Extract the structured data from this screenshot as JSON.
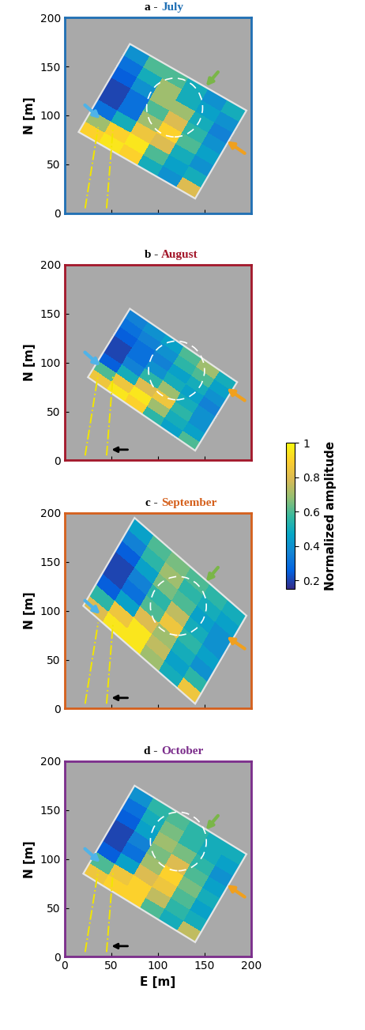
{
  "chart_data": [
    {
      "type": "heatmap",
      "title": "a - July",
      "color": "#1f6fb4",
      "xlim": [
        0,
        200
      ],
      "ylim": [
        0,
        200
      ],
      "xticks": [
        0,
        50,
        100,
        150,
        200
      ],
      "yticks": [
        0,
        50,
        100,
        150,
        200
      ],
      "y_label": "N [m]",
      "tick_labels": "y",
      "grid_corners": [
        [
          140,
          15
        ],
        [
          195,
          105
        ],
        [
          15,
          83
        ]
      ],
      "cells": [
        [
          0.8,
          0.5,
          0.4,
          0.45,
          0.4,
          0.35,
          0.4,
          0.5
        ],
        [
          0.4,
          0.45,
          0.5,
          0.6,
          0.55,
          0.5,
          0.45,
          0.4
        ],
        [
          0.5,
          0.6,
          0.8,
          0.9,
          0.8,
          0.7,
          0.5,
          0.5
        ],
        [
          0.9,
          0.95,
          0.85,
          0.7,
          0.6,
          0.7,
          0.7,
          0.6
        ],
        [
          0.95,
          0.9,
          0.5,
          0.3,
          0.3,
          0.4,
          0.5,
          0.6
        ],
        [
          0.9,
          0.7,
          0.3,
          0.2,
          0.2,
          0.25,
          0.3,
          0.4
        ]
      ]
    },
    {
      "type": "heatmap",
      "title": "b - August",
      "color": "#a3172a",
      "xlim": [
        0,
        200
      ],
      "ylim": [
        0,
        200
      ],
      "xticks": [
        0,
        50,
        100,
        150,
        200
      ],
      "yticks": [
        0,
        50,
        100,
        150,
        200
      ],
      "y_label": "N [m]",
      "tick_labels": "y",
      "grid_corners": [
        [
          140,
          10
        ],
        [
          185,
          80
        ],
        [
          25,
          85
        ]
      ],
      "cells": [
        [
          0.6,
          0.45,
          0.4,
          0.4,
          0.35,
          0.4,
          0.45,
          0.5
        ],
        [
          0.45,
          0.5,
          0.55,
          0.5,
          0.45,
          0.5,
          0.6,
          0.7
        ],
        [
          0.55,
          0.7,
          0.85,
          0.7,
          0.5,
          0.45,
          0.55,
          0.6
        ],
        [
          0.9,
          0.95,
          0.8,
          0.55,
          0.4,
          0.35,
          0.4,
          0.45
        ],
        [
          0.95,
          0.85,
          0.5,
          0.35,
          0.3,
          0.3,
          0.35,
          0.4
        ],
        [
          0.85,
          0.6,
          0.25,
          0.2,
          0.2,
          0.25,
          0.3,
          0.35
        ]
      ]
    },
    {
      "type": "heatmap",
      "title": "c - September",
      "color": "#d5601c",
      "xlim": [
        0,
        200
      ],
      "ylim": [
        0,
        200
      ],
      "xticks": [
        0,
        50,
        100,
        150,
        200
      ],
      "yticks": [
        0,
        50,
        100,
        150,
        200
      ],
      "y_label": "N [m]",
      "tick_labels": "y",
      "grid_corners": [
        [
          140,
          5
        ],
        [
          195,
          95
        ],
        [
          20,
          105
        ]
      ],
      "cells": [
        [
          0.85,
          0.55,
          0.4,
          0.45,
          0.4,
          0.4,
          0.45,
          0.5
        ],
        [
          0.5,
          0.45,
          0.5,
          0.55,
          0.5,
          0.45,
          0.5,
          0.55
        ],
        [
          0.7,
          0.75,
          0.7,
          0.85,
          0.75,
          0.6,
          0.55,
          0.6
        ],
        [
          0.95,
          0.95,
          0.8,
          0.6,
          0.55,
          0.65,
          0.7,
          0.65
        ],
        [
          0.95,
          0.85,
          0.45,
          0.3,
          0.35,
          0.45,
          0.55,
          0.6
        ],
        [
          0.8,
          0.55,
          0.25,
          0.2,
          0.2,
          0.25,
          0.35,
          0.45
        ]
      ]
    },
    {
      "type": "heatmap",
      "title": "d - October",
      "color": "#7b2d8b",
      "xlim": [
        0,
        200
      ],
      "ylim": [
        0,
        200
      ],
      "xticks": [
        0,
        50,
        100,
        150,
        200
      ],
      "yticks": [
        0,
        50,
        100,
        150,
        200
      ],
      "x_label": "E [m]",
      "y_label": "N [m]",
      "grid_corners": [
        [
          140,
          15
        ],
        [
          195,
          105
        ],
        [
          20,
          85
        ]
      ],
      "cells": [
        [
          0.75,
          0.5,
          0.45,
          0.5,
          0.45,
          0.4,
          0.45,
          0.5
        ],
        [
          0.5,
          0.55,
          0.6,
          0.65,
          0.6,
          0.55,
          0.5,
          0.5
        ],
        [
          0.6,
          0.75,
          0.85,
          0.9,
          0.8,
          0.65,
          0.55,
          0.55
        ],
        [
          0.9,
          0.9,
          0.8,
          0.7,
          0.65,
          0.7,
          0.65,
          0.6
        ],
        [
          0.9,
          0.85,
          0.45,
          0.3,
          0.35,
          0.45,
          0.5,
          0.55
        ],
        [
          0.85,
          0.6,
          0.25,
          0.2,
          0.2,
          0.25,
          0.3,
          0.4
        ]
      ]
    }
  ],
  "colorbar": {
    "label": "Normalized amplitude",
    "range": [
      0.15,
      1
    ],
    "ticks": [
      0.2,
      0.4,
      0.6,
      0.8,
      1
    ]
  }
}
